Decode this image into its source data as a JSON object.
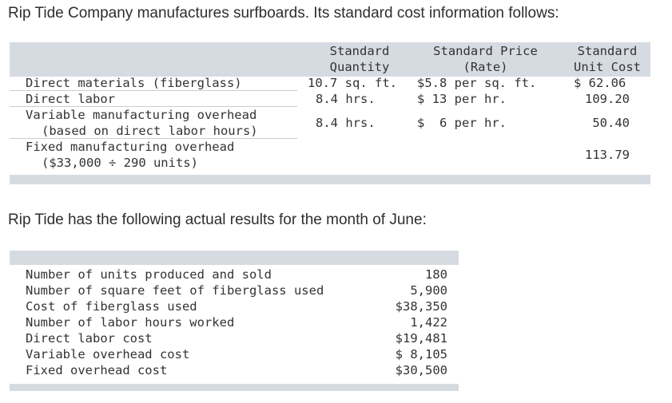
{
  "intro": "Rip Tide Company manufactures surfboards. Its standard cost information follows:",
  "standards": {
    "headers": {
      "qty1": "Standard",
      "qty2": "Quantity",
      "price1": "Standard Price",
      "price2": "(Rate)",
      "unit1": "Standard",
      "unit2": "Unit Cost"
    },
    "rows": [
      {
        "label": "Direct materials (fiberglass)",
        "qty": "10.7 sq. ft.",
        "price": "$5.8 per sq. ft.",
        "unit": "$ 62.06"
      },
      {
        "label": "Direct labor",
        "qty": "8.4 hrs.",
        "price": "$ 13 per hr.",
        "unit": "109.20"
      },
      {
        "label": "Variable manufacturing overhead",
        "label2": "(based on direct labor hours)",
        "qty": "8.4 hrs.",
        "price": "$  6 per hr.",
        "unit": "50.40"
      },
      {
        "label": "Fixed manufacturing overhead",
        "label2": "($33,000 ÷ 290 units)",
        "unit": "113.79"
      }
    ]
  },
  "actual_heading": "Rip Tide has the following actual results for the month of June:",
  "actual": {
    "rows": [
      {
        "label": "Number of units produced and sold",
        "value": "180"
      },
      {
        "label": "Number of square feet of fiberglass used",
        "value": "5,900"
      },
      {
        "label": "Cost of fiberglass used",
        "value": "$38,350"
      },
      {
        "label": "Number of labor hours worked",
        "value": "1,422"
      },
      {
        "label": "Direct labor cost",
        "value": "$19,481"
      },
      {
        "label": "Variable overhead cost",
        "value": "$ 8,105"
      },
      {
        "label": "Fixed overhead cost",
        "value": "$30,500"
      }
    ]
  }
}
